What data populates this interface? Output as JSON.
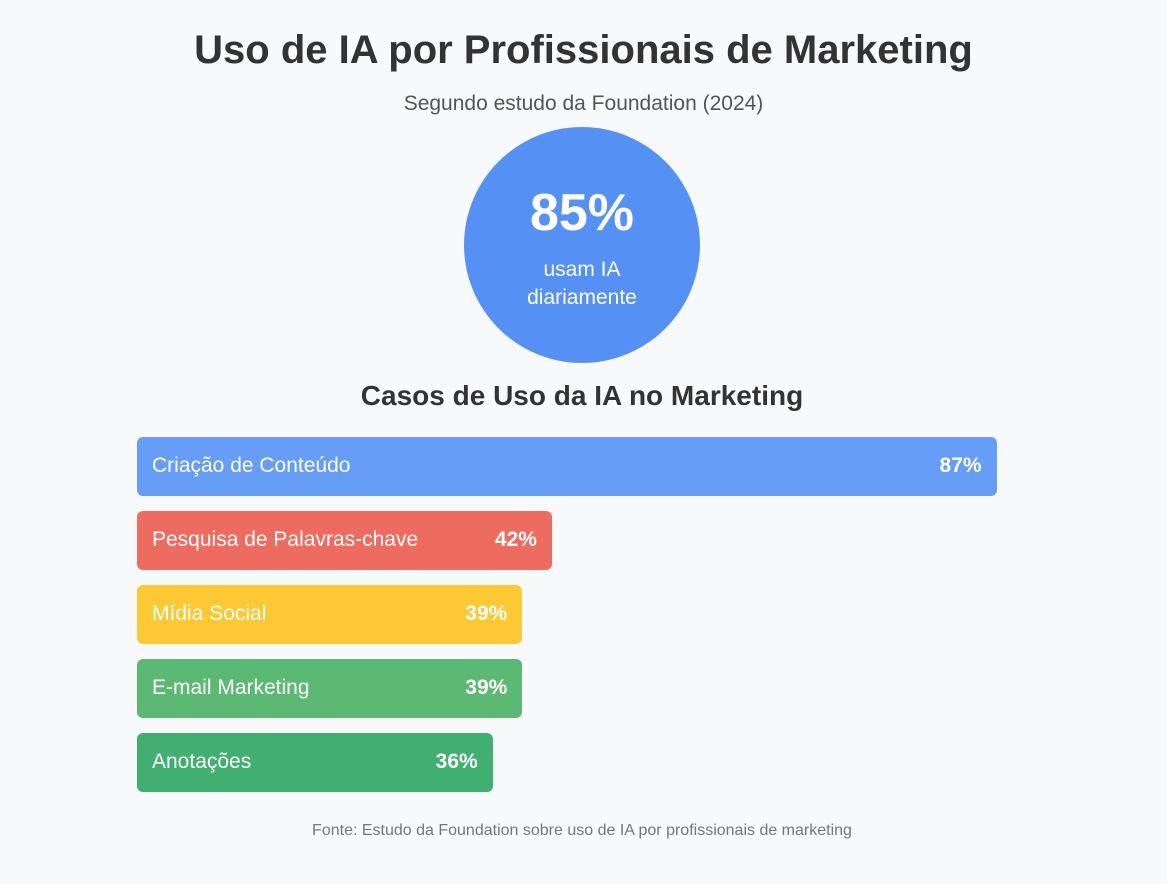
{
  "title": "Uso de IA por Profissionais de Marketing",
  "subtitle": "Segundo estudo da Foundation (2024)",
  "highlight": {
    "value": "85%",
    "caption": "usam IA diariamente",
    "color": "#5591f5"
  },
  "section_title": "Casos de Uso da IA no Marketing",
  "footer": "Fonte: Estudo da Foundation sobre uso de IA por profissionais de marketing",
  "chart_data": {
    "type": "bar",
    "orientation": "horizontal",
    "title": "Casos de Uso da IA no Marketing",
    "categories": [
      "Criação de Conteúdo",
      "Pesquisa de Palavras-chave",
      "Mídia Social",
      "E-mail Marketing",
      "Anotações"
    ],
    "values": [
      87,
      42,
      39,
      39,
      36
    ],
    "value_labels": [
      "87%",
      "42%",
      "39%",
      "39%",
      "36%"
    ],
    "colors": [
      "#669df6",
      "#ee6b5f",
      "#fcc934",
      "#5bb974",
      "#41af6f"
    ],
    "xlim": [
      0,
      100
    ],
    "grid": false
  }
}
